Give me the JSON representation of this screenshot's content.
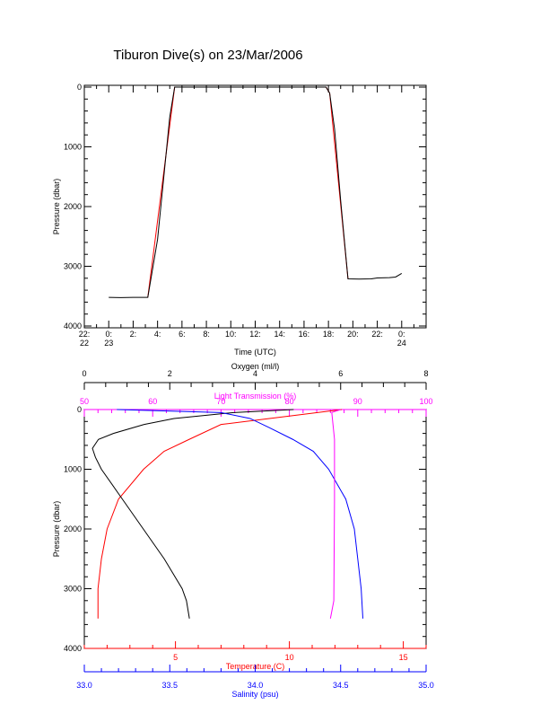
{
  "title": "Tiburon Dive(s) on 23/Mar/2006",
  "colors": {
    "oxygen": "#000000",
    "temperature": "#ff0000",
    "salinity": "#0000ff",
    "light": "#ff00ff",
    "axis": "#000000"
  },
  "chart_data": [
    {
      "type": "line",
      "xlabel": "Time (UTC)",
      "ylabel": "Pressure (dbar)",
      "xlim": [
        -2,
        26
      ],
      "ylim": [
        4000,
        0
      ],
      "x_ticks": [
        {
          "v": -2,
          "l1": "22:",
          "l2": "22"
        },
        {
          "v": 0,
          "l1": "0:",
          "l2": "23"
        },
        {
          "v": 2,
          "l1": "2:",
          "l2": ""
        },
        {
          "v": 4,
          "l1": "4:",
          "l2": ""
        },
        {
          "v": 6,
          "l1": "6:",
          "l2": ""
        },
        {
          "v": 8,
          "l1": "8:",
          "l2": ""
        },
        {
          "v": 10,
          "l1": "10:",
          "l2": ""
        },
        {
          "v": 12,
          "l1": "12:",
          "l2": ""
        },
        {
          "v": 14,
          "l1": "14:",
          "l2": ""
        },
        {
          "v": 16,
          "l1": "16:",
          "l2": ""
        },
        {
          "v": 18,
          "l1": "18:",
          "l2": ""
        },
        {
          "v": 20,
          "l1": "20:",
          "l2": ""
        },
        {
          "v": 22,
          "l1": "22:",
          "l2": ""
        },
        {
          "v": 24,
          "l1": "0:",
          "l2": "24"
        }
      ],
      "y_ticks": [
        "0",
        "1000",
        "2000",
        "3000",
        "4000"
      ],
      "series": [
        {
          "color": "#000000",
          "x": [
            0,
            1,
            2,
            3.2,
            4,
            5,
            5.4,
            10,
            17.8,
            18.1,
            18.5,
            19,
            19.6,
            20.5,
            21.5,
            22,
            23,
            23.5,
            24
          ],
          "y": [
            3520,
            3525,
            3520,
            3520,
            2550,
            500,
            0,
            0,
            0,
            100,
            700,
            1900,
            3210,
            3215,
            3210,
            3195,
            3190,
            3180,
            3120
          ]
        },
        {
          "color": "#ff0000",
          "x": [
            3.2,
            5.4,
            17.8,
            18.1,
            19.6
          ],
          "y": [
            3520,
            0,
            0,
            100,
            3210
          ]
        }
      ]
    },
    {
      "type": "line",
      "ylabel": "Pressure (dbar)",
      "ylim": [
        4000,
        0
      ],
      "y_ticks": [
        "0",
        "1000",
        "2000",
        "3000",
        "4000"
      ],
      "axes": {
        "oxygen": {
          "label": "Oxygen (ml/l)",
          "range": [
            0,
            8
          ],
          "ticks": [
            "0",
            "2",
            "4",
            "6",
            "8"
          ]
        },
        "light": {
          "label": "Light Transmission (%)",
          "range": [
            50,
            100
          ],
          "ticks": [
            "50",
            "60",
            "70",
            "80",
            "90",
            "100"
          ]
        },
        "temperature": {
          "label": "Temperature (C)",
          "range": [
            1,
            16
          ],
          "ticks": [
            "5",
            "10",
            "15"
          ]
        },
        "salinity": {
          "label": "Salinity (psu)",
          "range": [
            33,
            35
          ],
          "ticks": [
            "33.0",
            "33.5",
            "34.0",
            "34.5",
            "35.0"
          ]
        }
      },
      "series": [
        {
          "axis": "temperature",
          "color": "#ff0000",
          "x": [
            12.3,
            10.2,
            7.0,
            5.6,
            4.5,
            3.6,
            2.5,
            2.0,
            1.75,
            1.6,
            1.6
          ],
          "y": [
            0,
            100,
            250,
            500,
            700,
            1000,
            1500,
            2000,
            2500,
            3000,
            3500
          ]
        },
        {
          "axis": "oxygen",
          "color": "#000000",
          "x": [
            4.9,
            3.5,
            2.1,
            1.4,
            0.68,
            0.33,
            0.19,
            0.26,
            0.4,
            0.89,
            1.38,
            1.87,
            2.29,
            2.39,
            2.46
          ],
          "y": [
            0,
            50,
            150,
            250,
            400,
            500,
            650,
            800,
            1000,
            1500,
            2000,
            2500,
            3000,
            3200,
            3500
          ]
        },
        {
          "axis": "salinity",
          "color": "#0000ff",
          "x": [
            33.19,
            33.8,
            33.97,
            34.08,
            34.22,
            34.34,
            34.43,
            34.53,
            34.58,
            34.6,
            34.62,
            34.63
          ],
          "y": [
            0,
            50,
            150,
            300,
            500,
            700,
            1000,
            1500,
            2000,
            2500,
            3000,
            3500
          ]
        },
        {
          "axis": "light",
          "color": "#ff00ff",
          "x": [
            87.5,
            86.2,
            86.6,
            86.6,
            86.5,
            86.0
          ],
          "y": [
            0,
            50,
            500,
            1500,
            3200,
            3500
          ]
        }
      ]
    }
  ]
}
